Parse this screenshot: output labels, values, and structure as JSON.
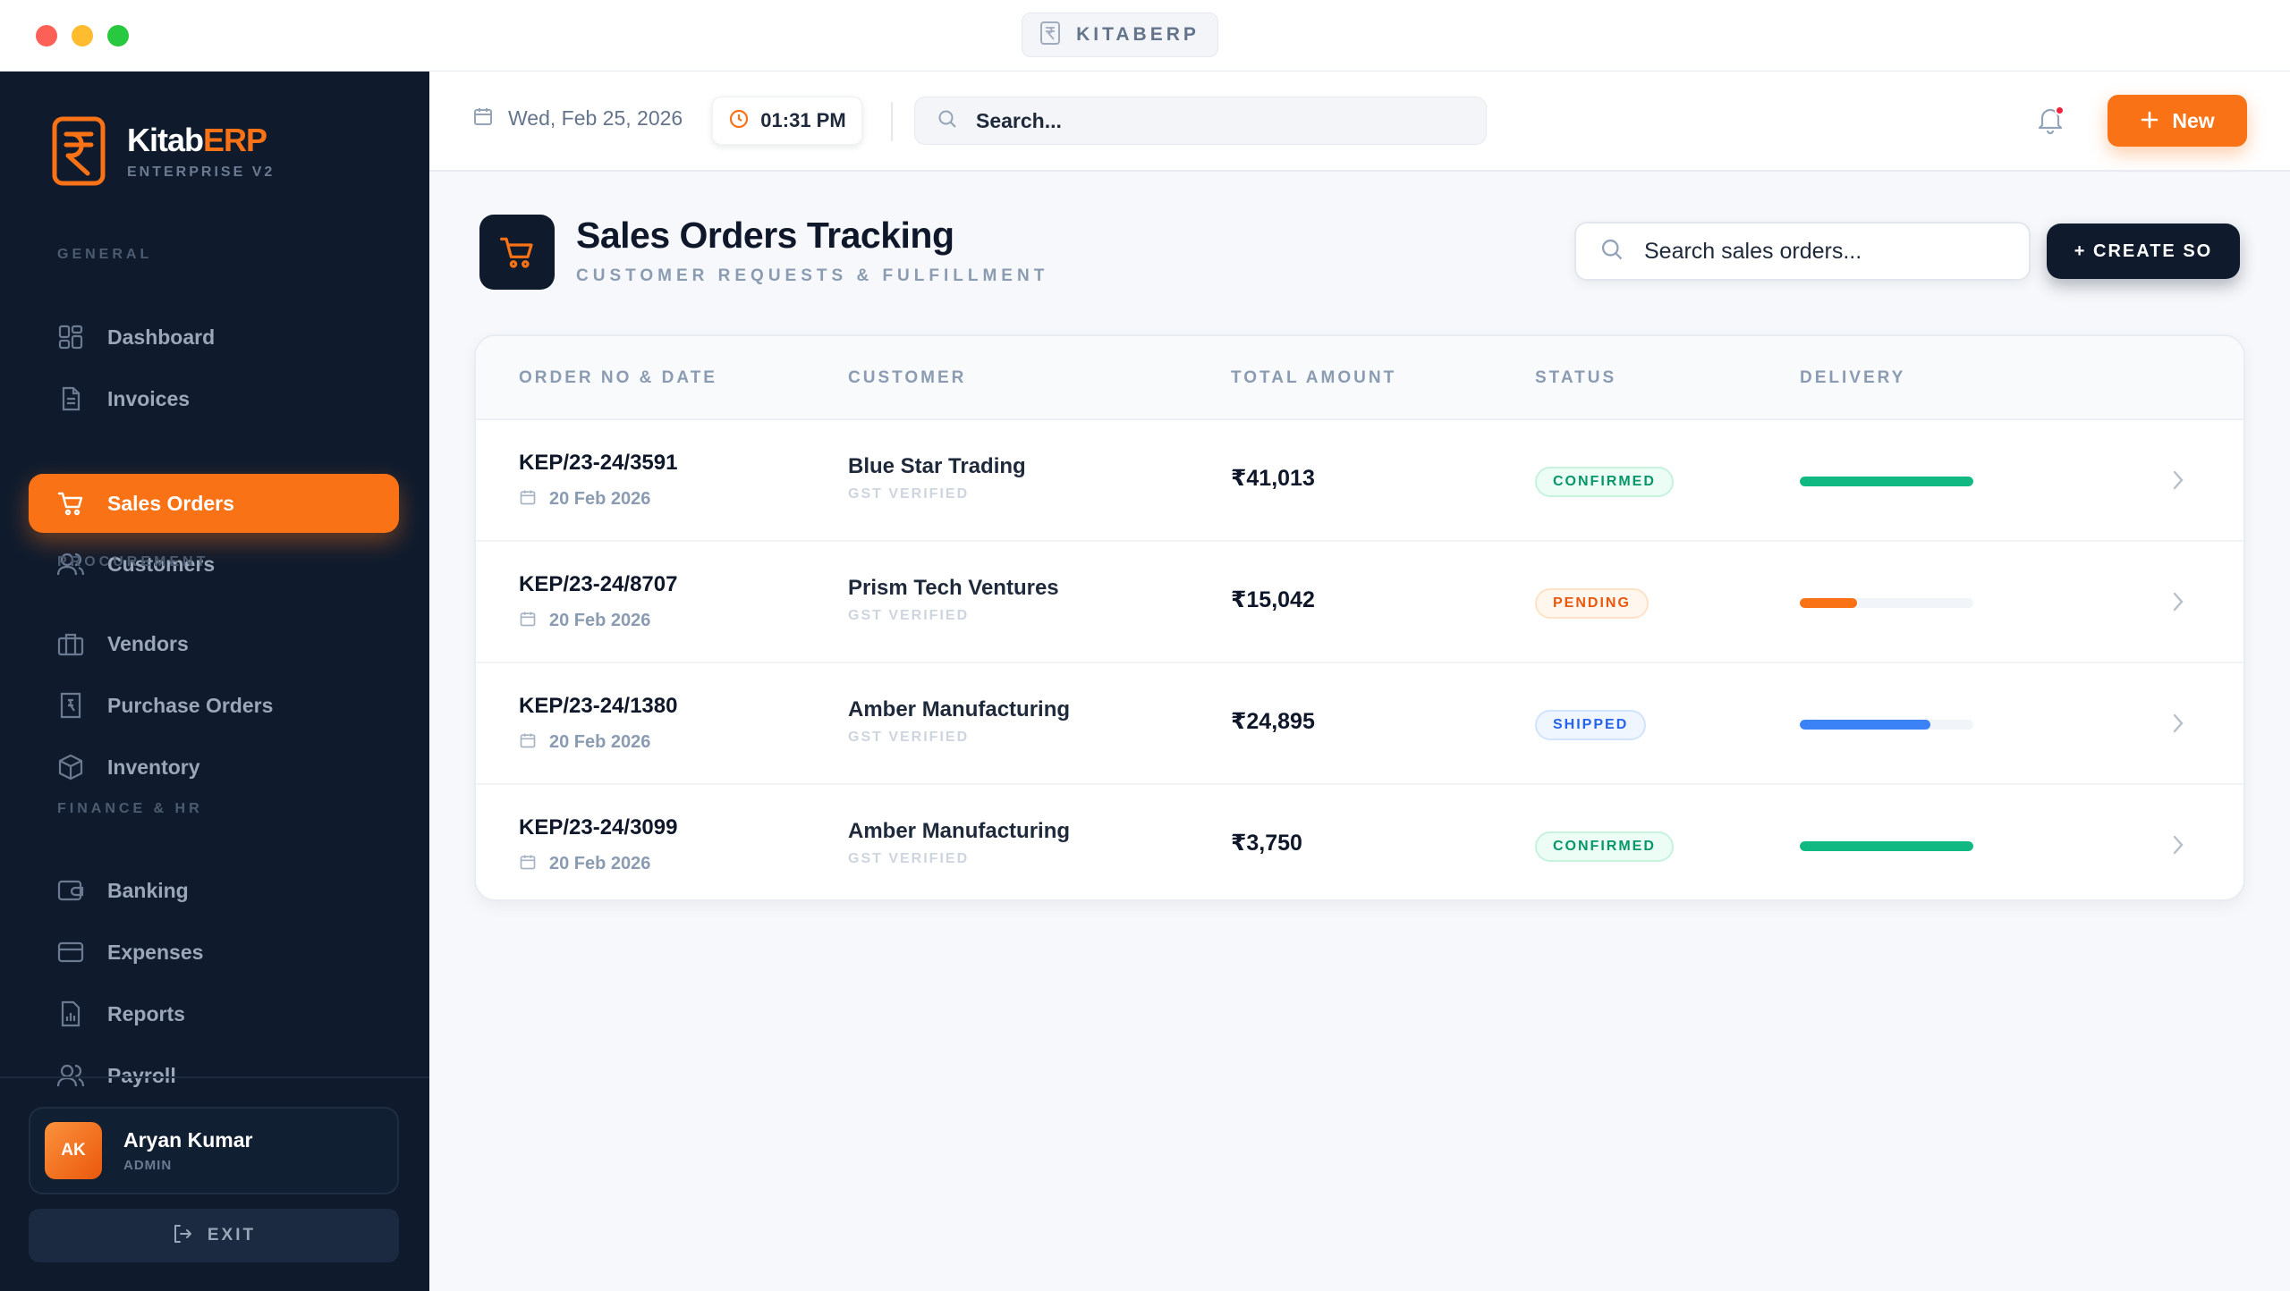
{
  "window": {
    "app_title": "KITABERP"
  },
  "brand": {
    "name_main": "Kitab",
    "name_accent": "ERP",
    "subtitle": "ENTERPRISE V2"
  },
  "sidebar": {
    "sections": [
      {
        "label": "GENERAL",
        "items": [
          {
            "label": "Dashboard",
            "icon": "grid-icon"
          },
          {
            "label": "Invoices",
            "icon": "file-icon"
          },
          {
            "label": "Sales Orders",
            "icon": "cart-icon",
            "active": true
          },
          {
            "label": "Customers",
            "icon": "users-icon"
          }
        ]
      },
      {
        "label": "PROCUREMENT",
        "items": [
          {
            "label": "Vendors",
            "icon": "briefcase-icon"
          },
          {
            "label": "Purchase Orders",
            "icon": "receipt-icon"
          },
          {
            "label": "Inventory",
            "icon": "box-icon"
          }
        ]
      },
      {
        "label": "FINANCE & HR",
        "items": [
          {
            "label": "Banking",
            "icon": "wallet-icon"
          },
          {
            "label": "Expenses",
            "icon": "card-icon"
          },
          {
            "label": "Reports",
            "icon": "report-icon"
          },
          {
            "label": "Payroll",
            "icon": "users-icon"
          }
        ]
      }
    ],
    "user": {
      "initials": "AK",
      "name": "Aryan Kumar",
      "role": "ADMIN"
    },
    "exit_label": "EXIT"
  },
  "topbar": {
    "date": "Wed, Feb 25, 2026",
    "time": "01:31 PM",
    "search_placeholder": "Search...",
    "new_label": "New"
  },
  "page": {
    "title": "Sales Orders Tracking",
    "subtitle": "CUSTOMER REQUESTS & FULFILLMENT",
    "search_placeholder": "Search sales orders...",
    "create_label": "+ CREATE SO"
  },
  "table": {
    "columns": [
      "ORDER NO & DATE",
      "CUSTOMER",
      "TOTAL AMOUNT",
      "STATUS",
      "DELIVERY"
    ],
    "rows": [
      {
        "order_no": "KEP/23-24/3591",
        "date": "20 Feb 2026",
        "customer": "Blue Star Trading",
        "tag": "GST VERIFIED",
        "amount": "₹41,013",
        "status": "CONFIRMED",
        "delivery_progress": 1.0
      },
      {
        "order_no": "KEP/23-24/8707",
        "date": "20 Feb 2026",
        "customer": "Prism Tech Ventures",
        "tag": "GST VERIFIED",
        "amount": "₹15,042",
        "status": "PENDING",
        "delivery_progress": 0.33
      },
      {
        "order_no": "KEP/23-24/1380",
        "date": "20 Feb 2026",
        "customer": "Amber Manufacturing",
        "tag": "GST VERIFIED",
        "amount": "₹24,895",
        "status": "SHIPPED",
        "delivery_progress": 0.75
      },
      {
        "order_no": "KEP/23-24/3099",
        "date": "20 Feb 2026",
        "customer": "Amber Manufacturing",
        "tag": "GST VERIFIED",
        "amount": "₹3,750",
        "status": "CONFIRMED",
        "delivery_progress": 1.0
      }
    ]
  },
  "colors": {
    "accent": "#f97316",
    "sidebar_bg": "#0f1b2d",
    "confirmed": "#10b981",
    "pending": "#f97316",
    "shipped": "#3b82f6"
  }
}
